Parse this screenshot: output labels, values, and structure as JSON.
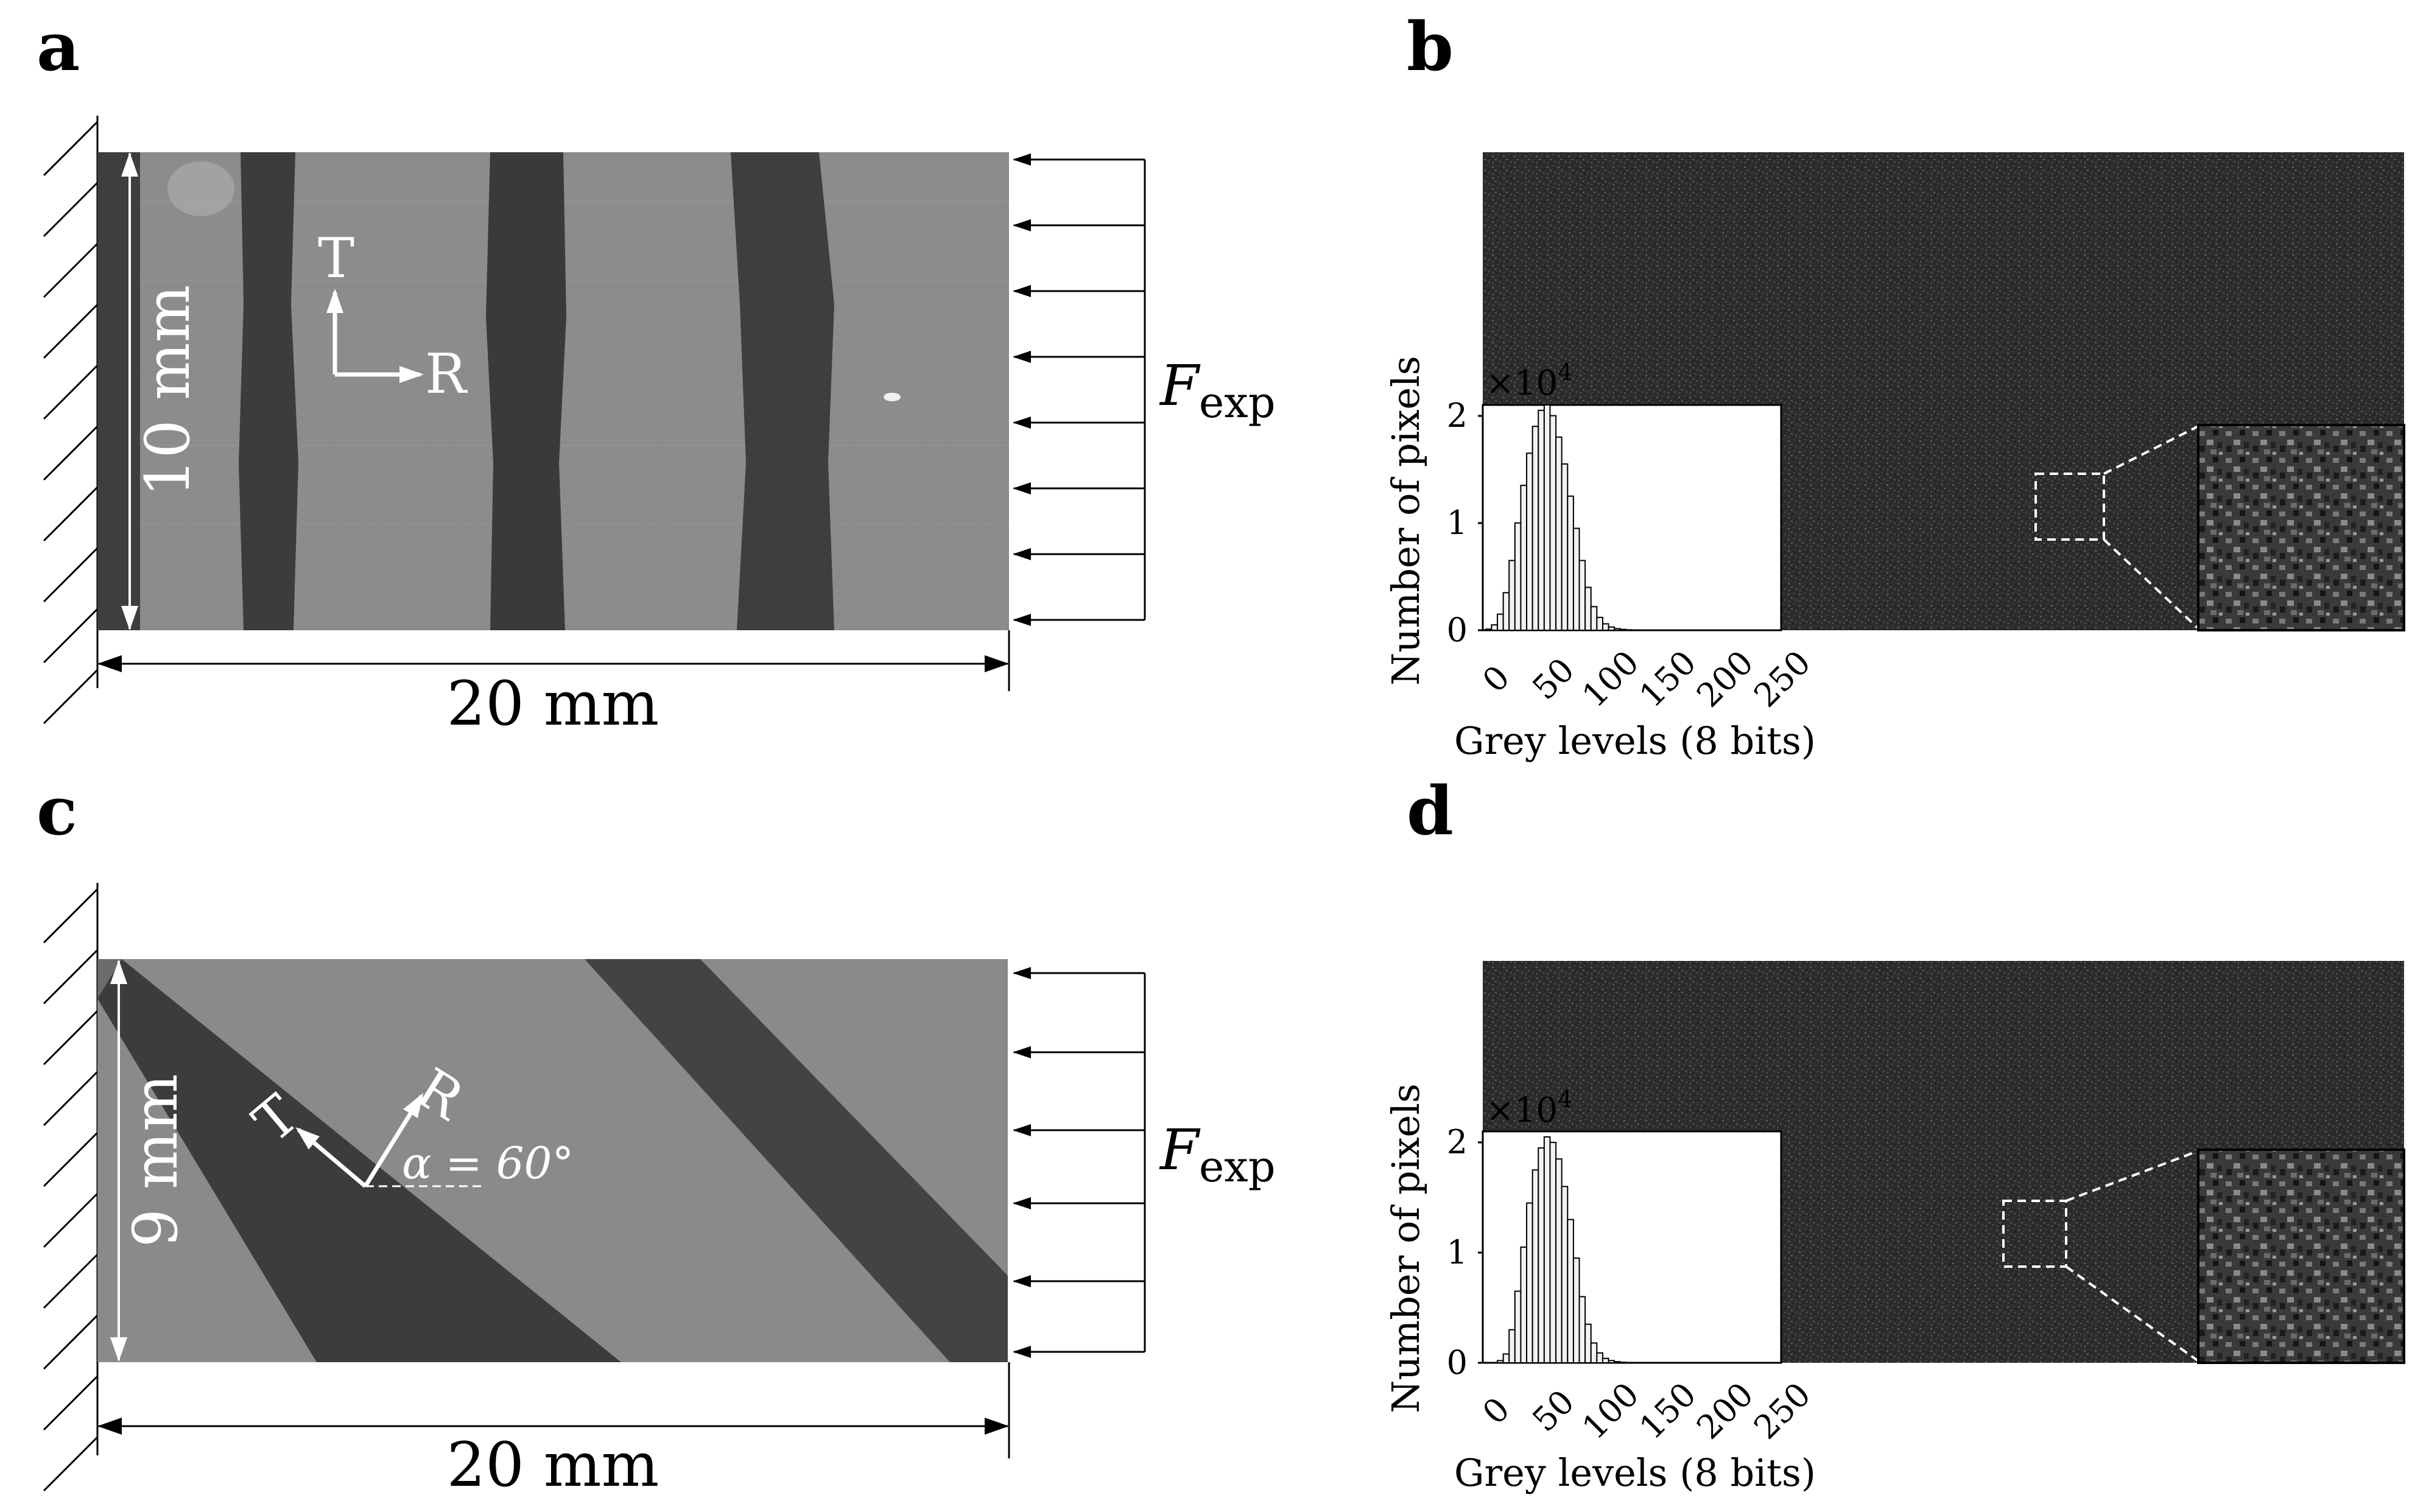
{
  "figure": {
    "panels": [
      {
        "letter": "a",
        "dim_width": "20 mm",
        "dim_height": "10 mm",
        "axes": {
          "t": "T",
          "r": "R"
        },
        "force": {
          "main": "F",
          "sub": "exp"
        }
      },
      {
        "letter": "b"
      },
      {
        "letter": "c",
        "dim_width": "20 mm",
        "dim_height": "9 mm",
        "axes": {
          "t": "T",
          "r": "R"
        },
        "angle": "α = 60°",
        "force": {
          "main": "F",
          "sub": "exp"
        }
      },
      {
        "letter": "d"
      }
    ],
    "colors": {
      "specimen_light": "#8e8e8e",
      "specimen_dark": "#3f3f3f",
      "speckle": "#2e2e2e",
      "line": "#000000",
      "annot": "#ffffff"
    }
  },
  "chart_data": [
    {
      "type": "bar",
      "panel": "b",
      "xlabel": "Grey levels (8 bits)",
      "ylabel": "Number of pixels",
      "y_multiplier": "×10",
      "y_multiplier_exp": "4",
      "xlim": [
        0,
        255
      ],
      "ylim": [
        0,
        2.1
      ],
      "xticks": [
        "0",
        "50",
        "100",
        "150",
        "200",
        "250"
      ],
      "yticks": [
        "0",
        "1",
        "2"
      ],
      "bin_width": 5,
      "x": [
        5,
        10,
        15,
        20,
        25,
        30,
        35,
        40,
        45,
        50,
        55,
        60,
        65,
        70,
        75,
        80,
        85,
        90,
        95,
        100,
        105,
        110,
        115,
        120,
        125,
        130
      ],
      "values": [
        0.01,
        0.05,
        0.15,
        0.35,
        0.65,
        1.0,
        1.35,
        1.65,
        1.9,
        2.05,
        2.1,
        2.0,
        1.8,
        1.55,
        1.25,
        0.95,
        0.65,
        0.4,
        0.22,
        0.12,
        0.06,
        0.03,
        0.015,
        0.008,
        0.004,
        0.002
      ]
    },
    {
      "type": "bar",
      "panel": "d",
      "xlabel": "Grey levels (8 bits)",
      "ylabel": "Number of pixels",
      "y_multiplier": "×10",
      "y_multiplier_exp": "4",
      "xlim": [
        0,
        255
      ],
      "ylim": [
        0,
        2.1
      ],
      "xticks": [
        "0",
        "50",
        "100",
        "150",
        "200",
        "250"
      ],
      "yticks": [
        "0",
        "1",
        "2"
      ],
      "bin_width": 5,
      "x": [
        15,
        20,
        25,
        30,
        35,
        40,
        45,
        50,
        55,
        60,
        65,
        70,
        75,
        80,
        85,
        90,
        95,
        100,
        105,
        110,
        115,
        120,
        125,
        130
      ],
      "values": [
        0.02,
        0.08,
        0.3,
        0.65,
        1.05,
        1.45,
        1.75,
        1.95,
        2.05,
        2.0,
        1.85,
        1.6,
        1.3,
        0.95,
        0.6,
        0.35,
        0.18,
        0.09,
        0.04,
        0.02,
        0.01,
        0.005,
        0.003,
        0.002
      ]
    }
  ]
}
